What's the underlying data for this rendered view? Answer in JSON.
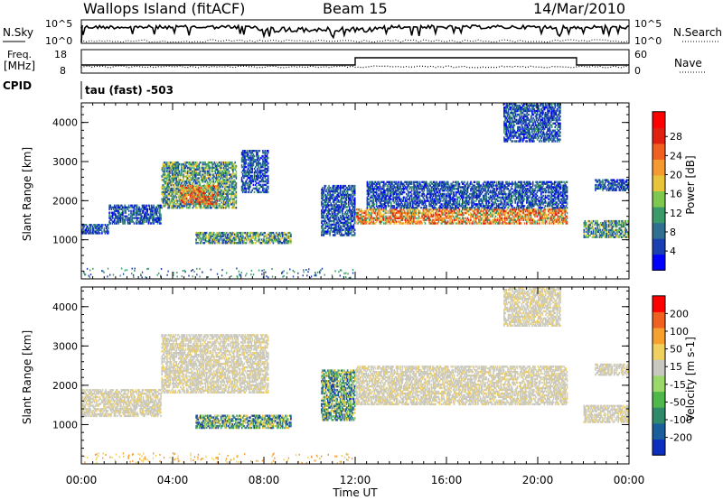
{
  "header": {
    "site": "Wallops Island (fitACF)",
    "beam": "Beam 15",
    "date": "14/Mar/2010"
  },
  "strip_nsky": {
    "left_label": "N.Sky",
    "ticks_left": [
      "10^5",
      "10^0"
    ],
    "right_label": "N.Search",
    "ticks_right": [
      "10^5",
      "10^0"
    ]
  },
  "strip_freq": {
    "left_label_1": "Freq.",
    "left_label_2": "[MHz]",
    "ticks_left": [
      "18",
      "8"
    ],
    "right_label": "Nave",
    "ticks_right": [
      "60",
      "0"
    ]
  },
  "cpid": {
    "label": "CPID",
    "value": "tau (fast) -503"
  },
  "chart_data": [
    {
      "type": "heatmap",
      "name": "power-panel",
      "ylabel": "Slant Range [km]",
      "yticks": [
        "1000",
        "2000",
        "3000",
        "4000"
      ],
      "ylim": [
        0,
        4500
      ],
      "xlim_hours": [
        0,
        24
      ],
      "colorbar": {
        "label": "Power [dB]",
        "ticks": [
          "4",
          "8",
          "12",
          "16",
          "20",
          "24",
          "28"
        ],
        "colors": [
          "#0000ff",
          "#1a3fb0",
          "#2f6f8f",
          "#3a9a6a",
          "#7ec850",
          "#e8c43a",
          "#f59a30",
          "#f06020",
          "#e02010",
          "#ff0000"
        ]
      },
      "regions": [
        {
          "t0": 0.0,
          "t1": 1.2,
          "r0": 1150,
          "r1": 1400,
          "dominant": "blue"
        },
        {
          "t0": 1.2,
          "t1": 3.5,
          "r0": 1400,
          "r1": 1900,
          "dominant": "blue"
        },
        {
          "t0": 3.5,
          "t1": 6.8,
          "r0": 1800,
          "r1": 3000,
          "dominant": "green"
        },
        {
          "t0": 4.3,
          "t1": 6.0,
          "r0": 1900,
          "r1": 2400,
          "dominant": "orange"
        },
        {
          "t0": 7.0,
          "t1": 8.2,
          "r0": 2200,
          "r1": 3300,
          "dominant": "blue"
        },
        {
          "t0": 5.0,
          "t1": 9.2,
          "r0": 900,
          "r1": 1200,
          "dominant": "green"
        },
        {
          "t0": 10.5,
          "t1": 12.0,
          "r0": 1100,
          "r1": 2400,
          "dominant": "blue"
        },
        {
          "t0": 12.0,
          "t1": 21.3,
          "r0": 1400,
          "r1": 1800,
          "dominant": "orange"
        },
        {
          "t0": 12.5,
          "t1": 21.3,
          "r0": 1800,
          "r1": 2500,
          "dominant": "blue"
        },
        {
          "t0": 18.5,
          "t1": 21.0,
          "r0": 3500,
          "r1": 4500,
          "dominant": "blue"
        },
        {
          "t0": 22.0,
          "t1": 24.0,
          "r0": 1050,
          "r1": 1500,
          "dominant": "green"
        },
        {
          "t0": 22.5,
          "t1": 24.0,
          "r0": 2250,
          "r1": 2550,
          "dominant": "blue"
        }
      ]
    },
    {
      "type": "heatmap",
      "name": "velocity-panel",
      "ylabel": "Slant Range [km]",
      "yticks": [
        "1000",
        "2000",
        "3000",
        "4000"
      ],
      "ylim": [
        0,
        4500
      ],
      "xlim_hours": [
        0,
        24
      ],
      "xticks": [
        "00:00",
        "04:00",
        "08:00",
        "12:00",
        "16:00",
        "20:00",
        "00:00"
      ],
      "xlabel": "Time UT",
      "colorbar": {
        "label": "Velocity [m s-1]",
        "ticks": [
          "200",
          "100",
          "50",
          "15",
          "-15",
          "-50",
          "-100",
          "-200"
        ],
        "colors": [
          "#0b2fbf",
          "#1a5e9c",
          "#2f8a6a",
          "#4fb84a",
          "#9ad86a",
          "#c8c8c0",
          "#f0d060",
          "#f6a030",
          "#f06020",
          "#ff0000"
        ]
      },
      "regions": [
        {
          "t0": 0.0,
          "t1": 3.5,
          "r0": 1200,
          "r1": 1900,
          "dominant": "grey"
        },
        {
          "t0": 3.5,
          "t1": 8.2,
          "r0": 1800,
          "r1": 3300,
          "dominant": "grey"
        },
        {
          "t0": 5.0,
          "t1": 9.2,
          "r0": 900,
          "r1": 1250,
          "dominant": "green"
        },
        {
          "t0": 10.5,
          "t1": 12.0,
          "r0": 1100,
          "r1": 2400,
          "dominant": "green"
        },
        {
          "t0": 12.0,
          "t1": 21.3,
          "r0": 1500,
          "r1": 2500,
          "dominant": "grey"
        },
        {
          "t0": 18.5,
          "t1": 21.0,
          "r0": 3500,
          "r1": 4500,
          "dominant": "grey"
        },
        {
          "t0": 22.0,
          "t1": 24.0,
          "r0": 1050,
          "r1": 1500,
          "dominant": "grey"
        },
        {
          "t0": 22.5,
          "t1": 24.0,
          "r0": 2250,
          "r1": 2550,
          "dominant": "grey"
        }
      ]
    }
  ]
}
